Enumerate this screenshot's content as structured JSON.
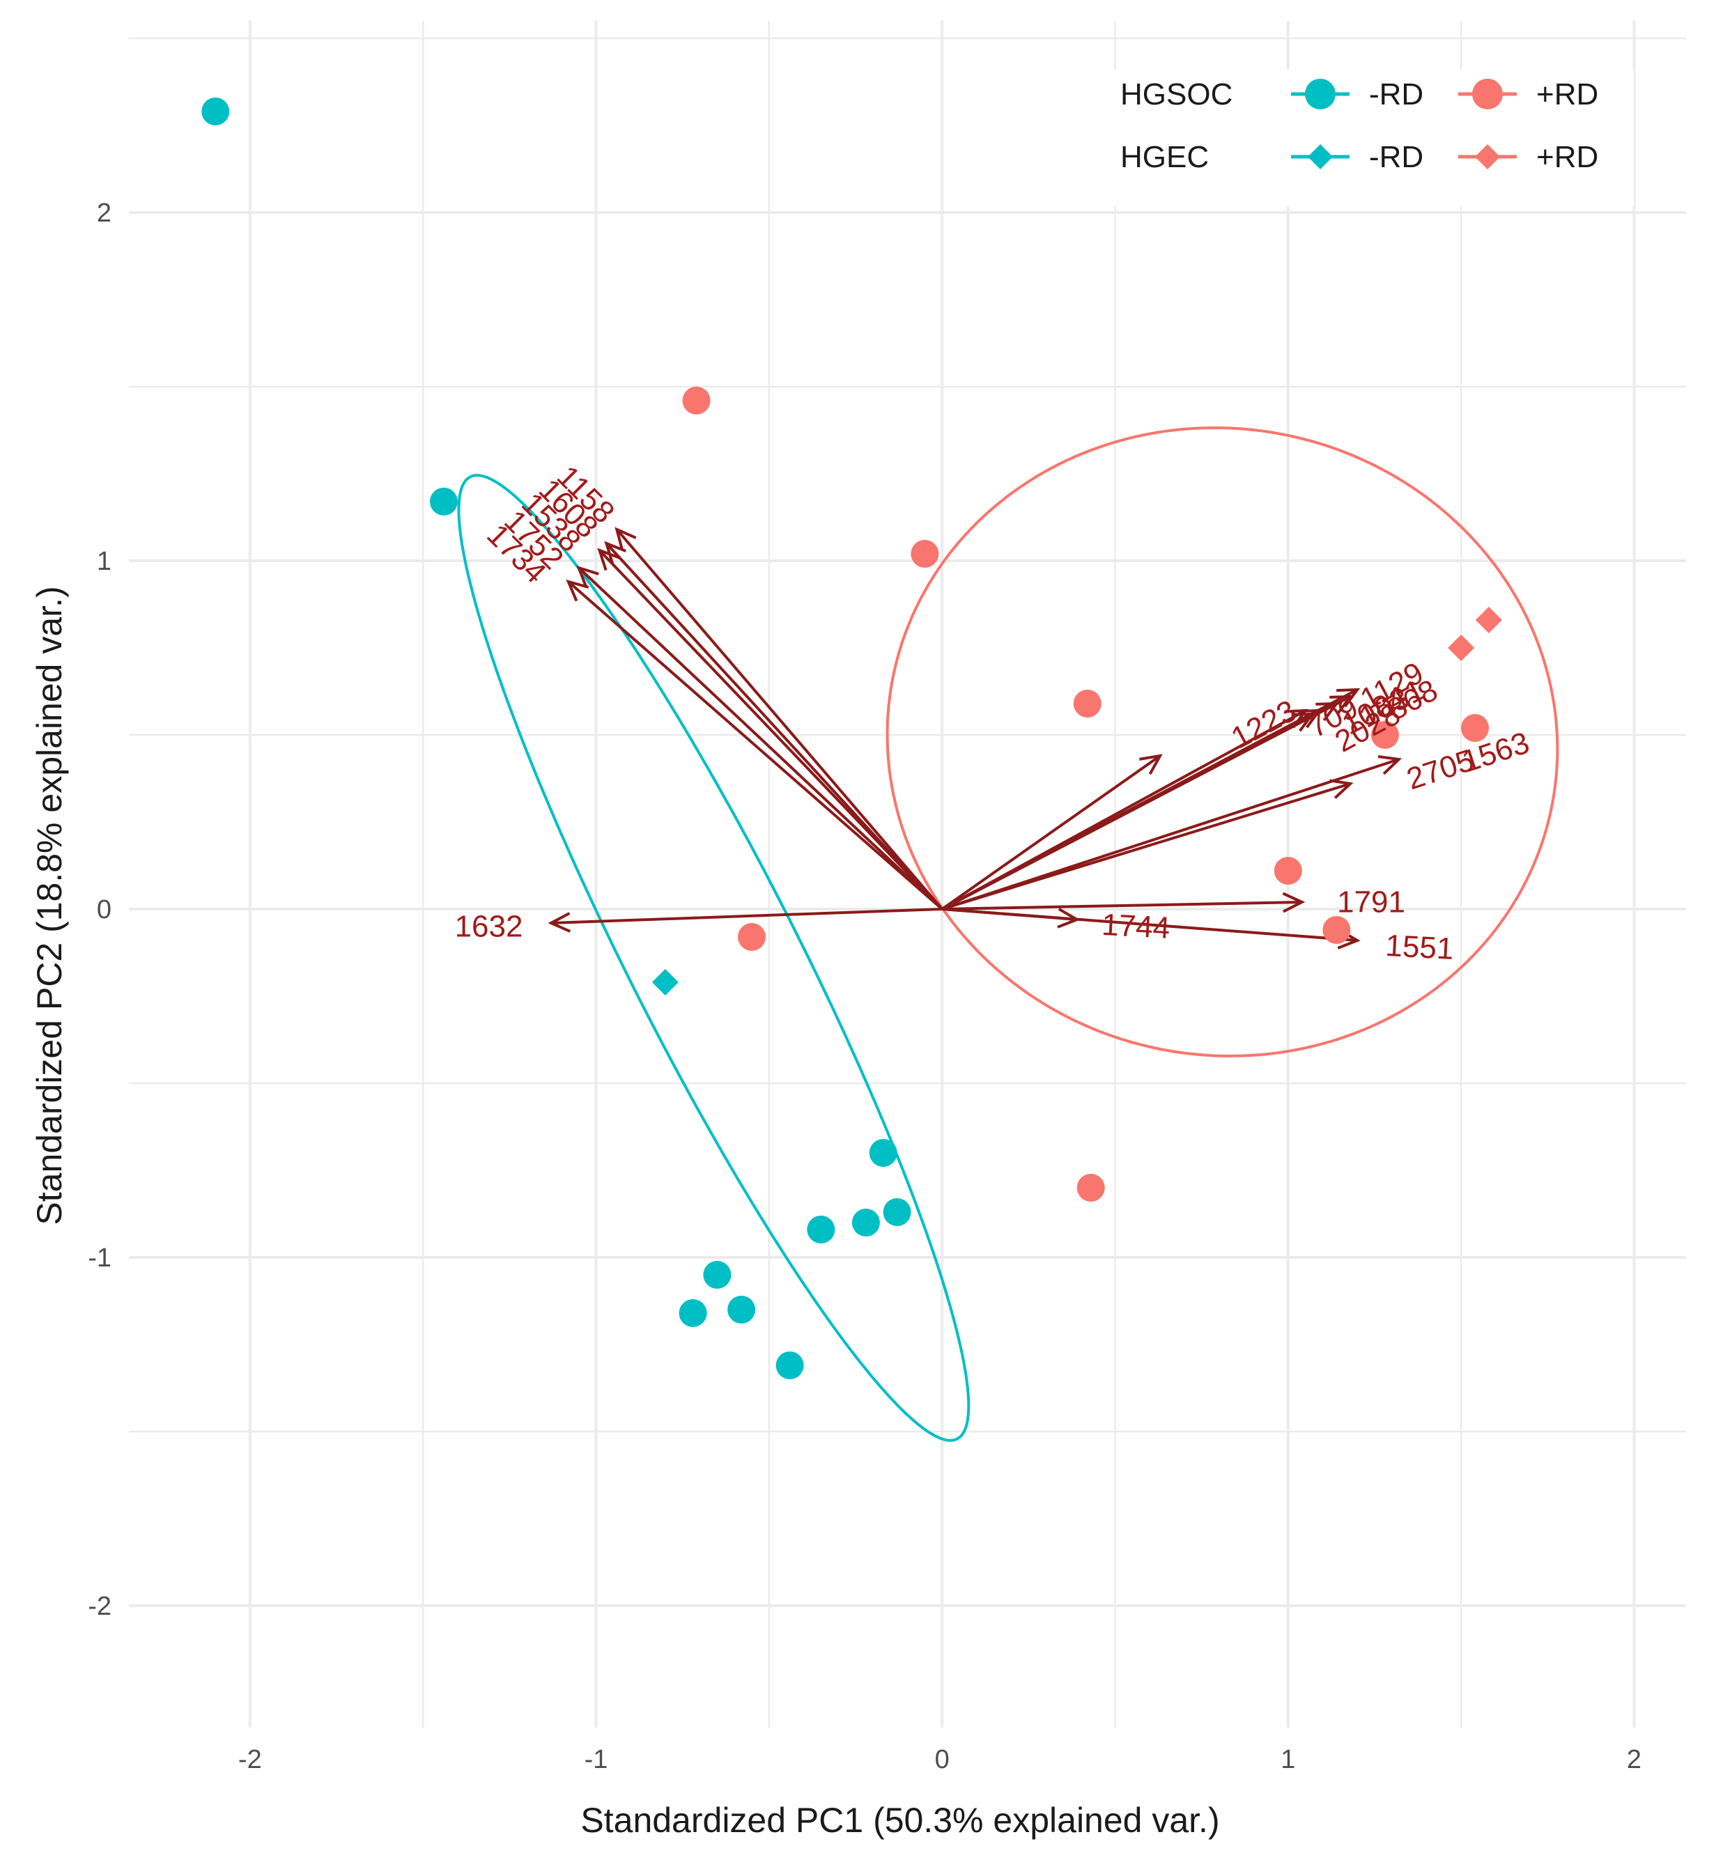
{
  "chart_data": {
    "type": "scatter",
    "subtype": "pca-biplot",
    "xlabel": "Standardized PC1 (50.3% explained var.)",
    "ylabel": "Standardized PC2 (18.8% explained var.)",
    "xlim": [
      -2.35,
      2.15
    ],
    "ylim": [
      -2.35,
      2.55
    ],
    "x_ticks": [
      -2,
      -1,
      0,
      1,
      2
    ],
    "x_tick_labels": [
      "-2",
      "-1",
      "0",
      "1",
      "2"
    ],
    "y_ticks": [
      -2,
      -1,
      0,
      1,
      2
    ],
    "y_tick_labels": [
      "-2",
      "-1",
      "0",
      "1",
      "2"
    ],
    "grid": true,
    "colors": {
      "minus_rd": "#00bfc4",
      "plus_rd": "#f8766d",
      "arrow": "#8b1a1a",
      "grid": "#ebebeb",
      "arrow_label": "#a11a1a"
    },
    "legend": {
      "position": "top-right",
      "rows": [
        {
          "group": "HGSOC",
          "shape": "circle",
          "entries": [
            "-RD",
            "+RD"
          ]
        },
        {
          "group": "HGEC",
          "shape": "diamond",
          "entries": [
            "-RD",
            "+RD"
          ]
        }
      ]
    },
    "series": [
      {
        "name": "HGSOC -RD",
        "shape": "circle",
        "color_key": "minus_rd",
        "points": [
          [
            -2.1,
            2.29
          ],
          [
            -1.44,
            1.17
          ],
          [
            -0.17,
            -0.7
          ],
          [
            -0.13,
            -0.87
          ],
          [
            -0.22,
            -0.9
          ],
          [
            -0.35,
            -0.92
          ],
          [
            -0.65,
            -1.05
          ],
          [
            -0.72,
            -1.16
          ],
          [
            -0.58,
            -1.15
          ],
          [
            -0.44,
            -1.31
          ]
        ]
      },
      {
        "name": "HGSOC +RD",
        "shape": "circle",
        "color_key": "plus_rd",
        "points": [
          [
            -0.71,
            1.46
          ],
          [
            -0.05,
            1.02
          ],
          [
            0.42,
            0.59
          ],
          [
            1.28,
            0.5
          ],
          [
            1.54,
            0.52
          ],
          [
            1.0,
            0.11
          ],
          [
            1.14,
            -0.06
          ],
          [
            -0.55,
            -0.08
          ],
          [
            0.43,
            -0.8
          ]
        ]
      },
      {
        "name": "HGEC -RD",
        "shape": "diamond",
        "color_key": "minus_rd",
        "points": [
          [
            -0.8,
            -0.21
          ]
        ]
      },
      {
        "name": "HGEC +RD",
        "shape": "diamond",
        "color_key": "plus_rd",
        "points": [
          [
            1.5,
            0.75
          ],
          [
            1.58,
            0.83
          ]
        ]
      }
    ],
    "ellipses": [
      {
        "group": "-RD",
        "color_key": "minus_rd",
        "center": [
          -0.66,
          -0.14
        ],
        "semi_axes": [
          1.55,
          0.245
        ],
        "angle_deg": -63
      },
      {
        "group": "+RD",
        "color_key": "plus_rd",
        "center": [
          0.81,
          0.48
        ],
        "semi_axes": [
          0.97,
          0.9
        ],
        "angle_deg": -9
      }
    ],
    "loadings": [
      {
        "label": "1158",
        "x": -0.94,
        "y": 1.09,
        "label_x": -1.03,
        "label_y": 1.19,
        "label_angle": 45
      },
      {
        "label": "1608",
        "x": -0.97,
        "y": 1.05,
        "label_x": -1.08,
        "label_y": 1.15,
        "label_angle": 45
      },
      {
        "label": "1538",
        "x": -0.99,
        "y": 1.03,
        "label_x": -1.13,
        "label_y": 1.11,
        "label_angle": 45
      },
      {
        "label": "1752",
        "x": -1.05,
        "y": 0.98,
        "label_x": -1.18,
        "label_y": 1.06,
        "label_angle": 45
      },
      {
        "label": "1734",
        "x": -1.08,
        "y": 0.94,
        "label_x": -1.23,
        "label_y": 1.02,
        "label_angle": 45
      },
      {
        "label": "1223",
        "x": 0.63,
        "y": 0.44,
        "label_x": 0.93,
        "label_y": 0.53,
        "label_angle": -28
      },
      {
        "label": "1129",
        "x": 1.2,
        "y": 0.63,
        "label_x": 1.3,
        "label_y": 0.64,
        "label_angle": -28
      },
      {
        "label": "1031",
        "x": 1.18,
        "y": 0.61,
        "label_x": 1.3,
        "label_y": 0.59,
        "label_angle": -28
      },
      {
        "label": "1084",
        "x": 1.14,
        "y": 0.59,
        "label_x": 1.25,
        "label_y": 0.57,
        "label_angle": -28
      },
      {
        "label": "709",
        "x": 1.05,
        "y": 0.57,
        "label_x": 1.13,
        "label_y": 0.55,
        "label_angle": -28
      },
      {
        "label": "2028",
        "x": 1.07,
        "y": 0.56,
        "label_x": 1.23,
        "label_y": 0.52,
        "label_angle": -28
      },
      {
        "label": "868",
        "x": 1.09,
        "y": 0.57,
        "label_x": 1.36,
        "label_y": 0.6,
        "label_angle": -28
      },
      {
        "label": "1563",
        "x": 1.32,
        "y": 0.43,
        "label_x": 1.6,
        "label_y": 0.45,
        "label_angle": -18
      },
      {
        "label": "2705",
        "x": 1.18,
        "y": 0.36,
        "label_x": 1.44,
        "label_y": 0.4,
        "label_angle": -18
      },
      {
        "label": "1791",
        "x": 1.04,
        "y": 0.02,
        "label_x": 1.24,
        "label_y": 0.02,
        "label_angle": 0
      },
      {
        "label": "1744",
        "x": 0.39,
        "y": -0.03,
        "label_x": 0.56,
        "label_y": -0.05,
        "label_angle": 3
      },
      {
        "label": "1551",
        "x": 1.2,
        "y": -0.09,
        "label_x": 1.38,
        "label_y": -0.11,
        "label_angle": 3
      },
      {
        "label": "1632",
        "x": -1.13,
        "y": -0.04,
        "label_x": -1.31,
        "label_y": -0.05,
        "label_angle": 0
      }
    ]
  }
}
